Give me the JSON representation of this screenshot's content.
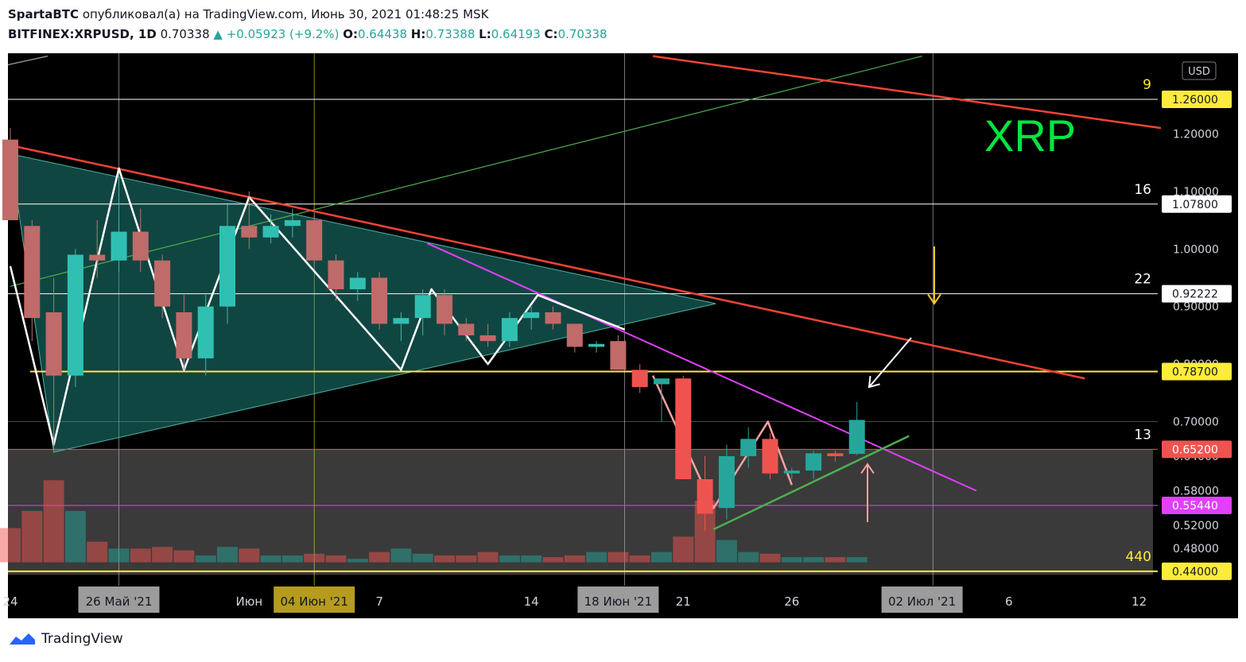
{
  "header": {
    "publisher": "SpartaBTC",
    "published_text": "опубликовал(а) на TradingView.com, Июнь 30, 2021 01:48:25 MSK",
    "symbol": "BITFINEX:XRPUSD, 1D",
    "last": "0.70338",
    "change": "▲ +0.05923 (+9.2%)",
    "o_label": "O:",
    "o": "0.64438",
    "h_label": "H:",
    "h": "0.73388",
    "l_label": "L:",
    "l": "0.64193",
    "c_label": "C:",
    "c": "0.70338"
  },
  "footer": {
    "brand": "TradingView"
  },
  "chart_data": {
    "type": "candlestick",
    "currency": "USD",
    "watermark": "XRP",
    "ylim": [
      0.415,
      1.34
    ],
    "y_ticks": [
      "1.20000",
      "1.10000",
      "1.00000",
      "0.90000",
      "0.80000",
      "0.70000",
      "0.64000",
      "0.58000",
      "0.52000",
      "0.48000"
    ],
    "price_markers": [
      {
        "value": "1.26000",
        "bg": "#ffeb3b",
        "fg": "#131722",
        "line": "#ffffff",
        "note": "9",
        "note_color": "#ffeb3b"
      },
      {
        "value": "1.07800",
        "bg": "#ffffff",
        "fg": "#131722",
        "line": "#ffffff",
        "note": "16",
        "note_color": "#ffffff"
      },
      {
        "value": "0.92222",
        "bg": "#ffffff",
        "fg": "#131722",
        "line": "#ffffff",
        "note": "22",
        "note_color": "#ffffff"
      },
      {
        "value": "0.78700",
        "bg": "#ffeb3b",
        "fg": "#131722",
        "line": "#ffeb3b",
        "note": "",
        "note_color": "#ffffff"
      },
      {
        "value": "0.65200",
        "bg": "#ef5350",
        "fg": "#ffffff",
        "line": "#ef5350",
        "note": "13",
        "note_color": "#ffffff"
      },
      {
        "value": "0.55440",
        "bg": "#e040fb",
        "fg": "#ffffff",
        "line": "#e040fb",
        "note": "",
        "note_color": "#ffffff"
      },
      {
        "value": "0.44000",
        "bg": "#ffeb3b",
        "fg": "#131722",
        "line": "#ffeb3b",
        "note": "440",
        "note_color": "#ffeb3b"
      }
    ],
    "x_labels": [
      {
        "day": 0,
        "label": "24",
        "box": false
      },
      {
        "day": 5,
        "label": "26 Май '21",
        "box": true
      },
      {
        "day": 11,
        "label": "Июн",
        "box": false
      },
      {
        "day": 14,
        "label": "04 Июн '21",
        "box": "yellow"
      },
      {
        "day": 17,
        "label": "7",
        "box": false
      },
      {
        "day": 24,
        "label": "14",
        "box": false
      },
      {
        "day": 28,
        "label": "18 Июн '21",
        "box": true
      },
      {
        "day": 31,
        "label": "21",
        "box": false
      },
      {
        "day": 36,
        "label": "26",
        "box": false
      },
      {
        "day": 42,
        "label": "02 Июл '21",
        "box": true
      },
      {
        "day": 46,
        "label": "6",
        "box": false
      },
      {
        "day": 52,
        "label": "12",
        "box": false
      }
    ],
    "candles": [
      {
        "o": 1.19,
        "h": 1.21,
        "l": 1.05,
        "c": 1.05,
        "v": 20
      },
      {
        "o": 1.04,
        "h": 1.05,
        "l": 0.84,
        "c": 0.88,
        "v": 30
      },
      {
        "o": 0.89,
        "h": 0.95,
        "l": 0.65,
        "c": 0.78,
        "v": 48
      },
      {
        "o": 0.78,
        "h": 1.0,
        "l": 0.76,
        "c": 0.99,
        "v": 30
      },
      {
        "o": 0.99,
        "h": 1.05,
        "l": 0.95,
        "c": 0.98,
        "v": 12
      },
      {
        "o": 0.98,
        "h": 1.13,
        "l": 0.96,
        "c": 1.03,
        "v": 8
      },
      {
        "o": 1.03,
        "h": 1.07,
        "l": 0.96,
        "c": 0.98,
        "v": 8
      },
      {
        "o": 0.98,
        "h": 0.99,
        "l": 0.88,
        "c": 0.9,
        "v": 9
      },
      {
        "o": 0.89,
        "h": 0.92,
        "l": 0.79,
        "c": 0.81,
        "v": 7
      },
      {
        "o": 0.81,
        "h": 0.92,
        "l": 0.78,
        "c": 0.9,
        "v": 4
      },
      {
        "o": 0.9,
        "h": 1.08,
        "l": 0.87,
        "c": 1.04,
        "v": 9
      },
      {
        "o": 1.04,
        "h": 1.1,
        "l": 1.0,
        "c": 1.02,
        "v": 8
      },
      {
        "o": 1.02,
        "h": 1.06,
        "l": 1.01,
        "c": 1.04,
        "v": 4
      },
      {
        "o": 1.04,
        "h": 1.07,
        "l": 1.02,
        "c": 1.05,
        "v": 4
      },
      {
        "o": 1.05,
        "h": 1.06,
        "l": 0.97,
        "c": 0.98,
        "v": 5
      },
      {
        "o": 0.98,
        "h": 0.99,
        "l": 0.91,
        "c": 0.93,
        "v": 4
      },
      {
        "o": 0.93,
        "h": 0.96,
        "l": 0.91,
        "c": 0.95,
        "v": 2
      },
      {
        "o": 0.95,
        "h": 0.96,
        "l": 0.86,
        "c": 0.87,
        "v": 6
      },
      {
        "o": 0.87,
        "h": 0.89,
        "l": 0.84,
        "c": 0.88,
        "v": 8
      },
      {
        "o": 0.88,
        "h": 0.93,
        "l": 0.85,
        "c": 0.92,
        "v": 5
      },
      {
        "o": 0.92,
        "h": 0.93,
        "l": 0.85,
        "c": 0.87,
        "v": 4
      },
      {
        "o": 0.87,
        "h": 0.88,
        "l": 0.84,
        "c": 0.85,
        "v": 4
      },
      {
        "o": 0.85,
        "h": 0.87,
        "l": 0.83,
        "c": 0.84,
        "v": 6
      },
      {
        "o": 0.84,
        "h": 0.89,
        "l": 0.83,
        "c": 0.88,
        "v": 4
      },
      {
        "o": 0.88,
        "h": 0.9,
        "l": 0.86,
        "c": 0.89,
        "v": 4
      },
      {
        "o": 0.89,
        "h": 0.9,
        "l": 0.86,
        "c": 0.87,
        "v": 3
      },
      {
        "o": 0.87,
        "h": 0.87,
        "l": 0.82,
        "c": 0.83,
        "v": 4
      },
      {
        "o": 0.83,
        "h": 0.84,
        "l": 0.82,
        "c": 0.835,
        "v": 6
      },
      {
        "o": 0.84,
        "h": 0.85,
        "l": 0.79,
        "c": 0.79,
        "v": 6
      },
      {
        "o": 0.79,
        "h": 0.8,
        "l": 0.75,
        "c": 0.76,
        "v": 4
      },
      {
        "o": 0.765,
        "h": 0.775,
        "l": 0.7,
        "c": 0.775,
        "v": 6
      },
      {
        "o": 0.775,
        "h": 0.78,
        "l": 0.6,
        "c": 0.6,
        "v": 15
      },
      {
        "o": 0.6,
        "h": 0.64,
        "l": 0.51,
        "c": 0.54,
        "v": 36
      },
      {
        "o": 0.55,
        "h": 0.66,
        "l": 0.53,
        "c": 0.64,
        "v": 13
      },
      {
        "o": 0.64,
        "h": 0.69,
        "l": 0.62,
        "c": 0.67,
        "v": 6
      },
      {
        "o": 0.67,
        "h": 0.68,
        "l": 0.6,
        "c": 0.61,
        "v": 5
      },
      {
        "o": 0.61,
        "h": 0.62,
        "l": 0.6,
        "c": 0.615,
        "v": 3
      },
      {
        "o": 0.615,
        "h": 0.65,
        "l": 0.6,
        "c": 0.645,
        "v": 3
      },
      {
        "o": 0.645,
        "h": 0.65,
        "l": 0.63,
        "c": 0.64,
        "v": 3
      },
      {
        "o": 0.644,
        "h": 0.734,
        "l": 0.642,
        "c": 0.703,
        "v": 3
      }
    ]
  }
}
